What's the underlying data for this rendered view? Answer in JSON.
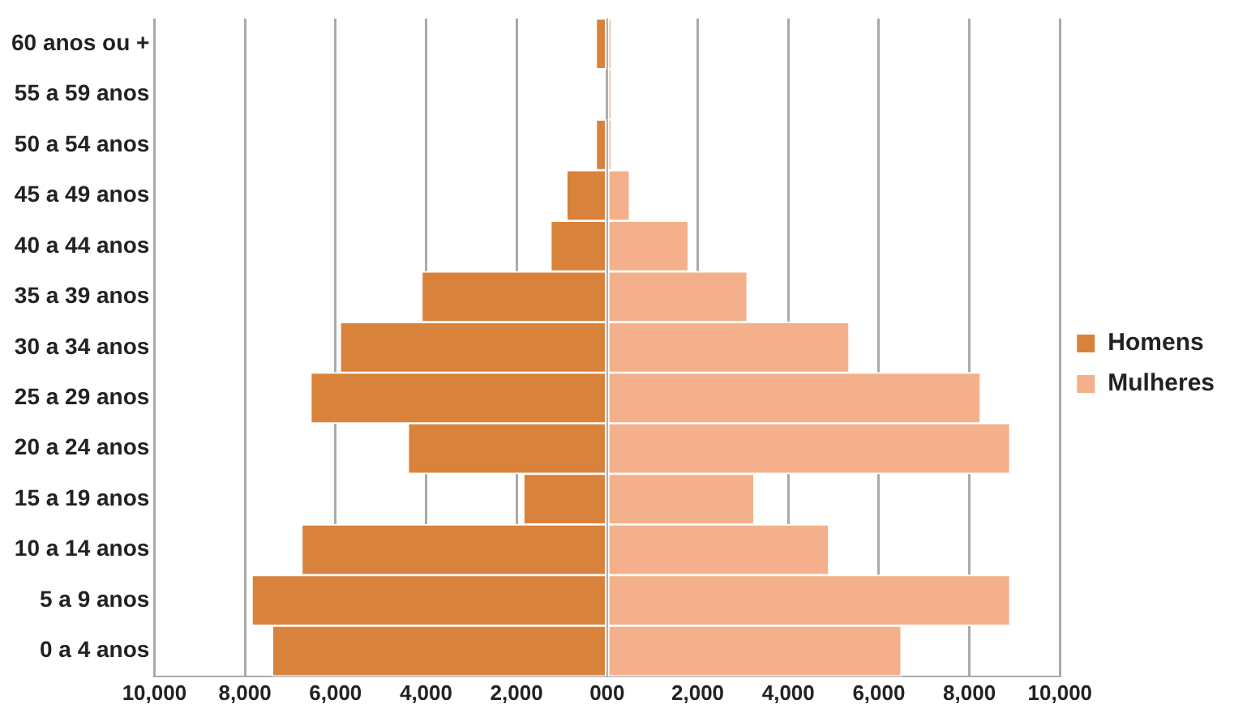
{
  "chart_data": {
    "type": "bar",
    "orientation": "horizontal",
    "stacked": true,
    "categories": [
      "60 anos ou +",
      "55 a 59 anos",
      "50 a 54 anos",
      "45 a 49 anos",
      "40 a 44 anos",
      "35 a 39 anos",
      "30 a 34 anos",
      "25 a 29 anos",
      "20 a 24 anos",
      "15 a 19 anos",
      "10 a 14 anos",
      "5 a 9 anos",
      "0 a 4 anos"
    ],
    "series": [
      {
        "name": "Homens",
        "color": "#d9823b",
        "values": [
          -250,
          0,
          -250,
          -900,
          -1250,
          -4100,
          -5900,
          -6550,
          -4400,
          -1850,
          -6750,
          -7850,
          -7400
        ]
      },
      {
        "name": "Mulheres",
        "color": "#f4b08a",
        "values": [
          100,
          100,
          100,
          500,
          1800,
          3100,
          5350,
          8250,
          8900,
          3250,
          4900,
          8900,
          6500
        ]
      }
    ],
    "xlim": [
      -10000,
      10000
    ],
    "xticks": [
      {
        "value": -10000,
        "label": "10,000"
      },
      {
        "value": -8000,
        "label": "8,000"
      },
      {
        "value": -6000,
        "label": "6,000"
      },
      {
        "value": -4000,
        "label": "4,000"
      },
      {
        "value": -2000,
        "label": "2,000"
      },
      {
        "value": 0,
        "label": "000"
      },
      {
        "value": 2000,
        "label": "2,000"
      },
      {
        "value": 4000,
        "label": "4,000"
      },
      {
        "value": 6000,
        "label": "6,000"
      },
      {
        "value": 8000,
        "label": "8,000"
      },
      {
        "value": 10000,
        "label": "10,000"
      }
    ],
    "grid": "x",
    "legend": "right"
  }
}
